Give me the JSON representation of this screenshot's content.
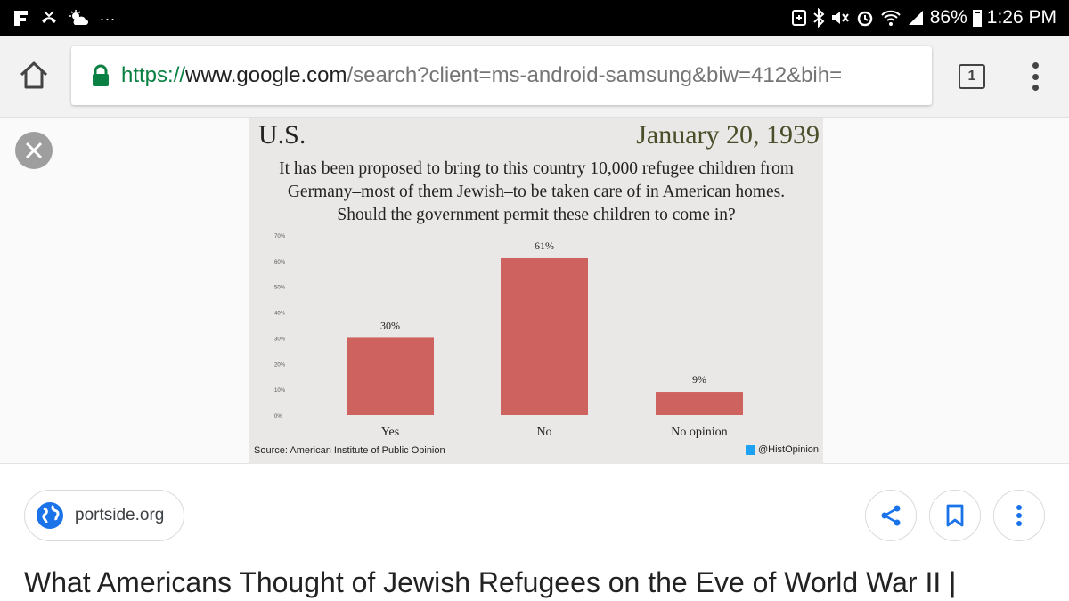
{
  "status_bar": {
    "left_icons": [
      "notification-f-icon",
      "missed-call-icon",
      "weather-icon"
    ],
    "more": "...",
    "battery": "86%",
    "time": "1:26 PM"
  },
  "browser": {
    "url_scheme": "https://",
    "url_domain": "www.google.com",
    "url_path": "/search?client=ms-android-samsung&biw=412&bih=",
    "tab_count": "1"
  },
  "infographic": {
    "country": "U.S.",
    "date": "January 20, 1939",
    "question": "It has been proposed to bring to this country 10,000 refugee children from Germany–most of them Jewish–to be taken care of in American homes. Should the government permit these children to come in?",
    "source": "Source: American Institute of Public Opinion",
    "handle": "@HistOpinion"
  },
  "chart_data": {
    "type": "bar",
    "categories": [
      "Yes",
      "No",
      "No opinion"
    ],
    "values": [
      30,
      61,
      9
    ],
    "value_labels": [
      "30%",
      "61%",
      "9%"
    ],
    "y_ticks": [
      "0%",
      "10%",
      "20%",
      "30%",
      "40%",
      "50%",
      "60%",
      "70%"
    ],
    "ylim": [
      0,
      70
    ],
    "bar_color": "#cd625e",
    "title": "",
    "xlabel": "",
    "ylabel": ""
  },
  "result": {
    "source_site": "portside.org",
    "title": "What Americans Thought of Jewish Refugees on the Eve of World War II |"
  },
  "colors": {
    "accent_blue": "#1a73e8",
    "secure_green": "#0b8043"
  }
}
